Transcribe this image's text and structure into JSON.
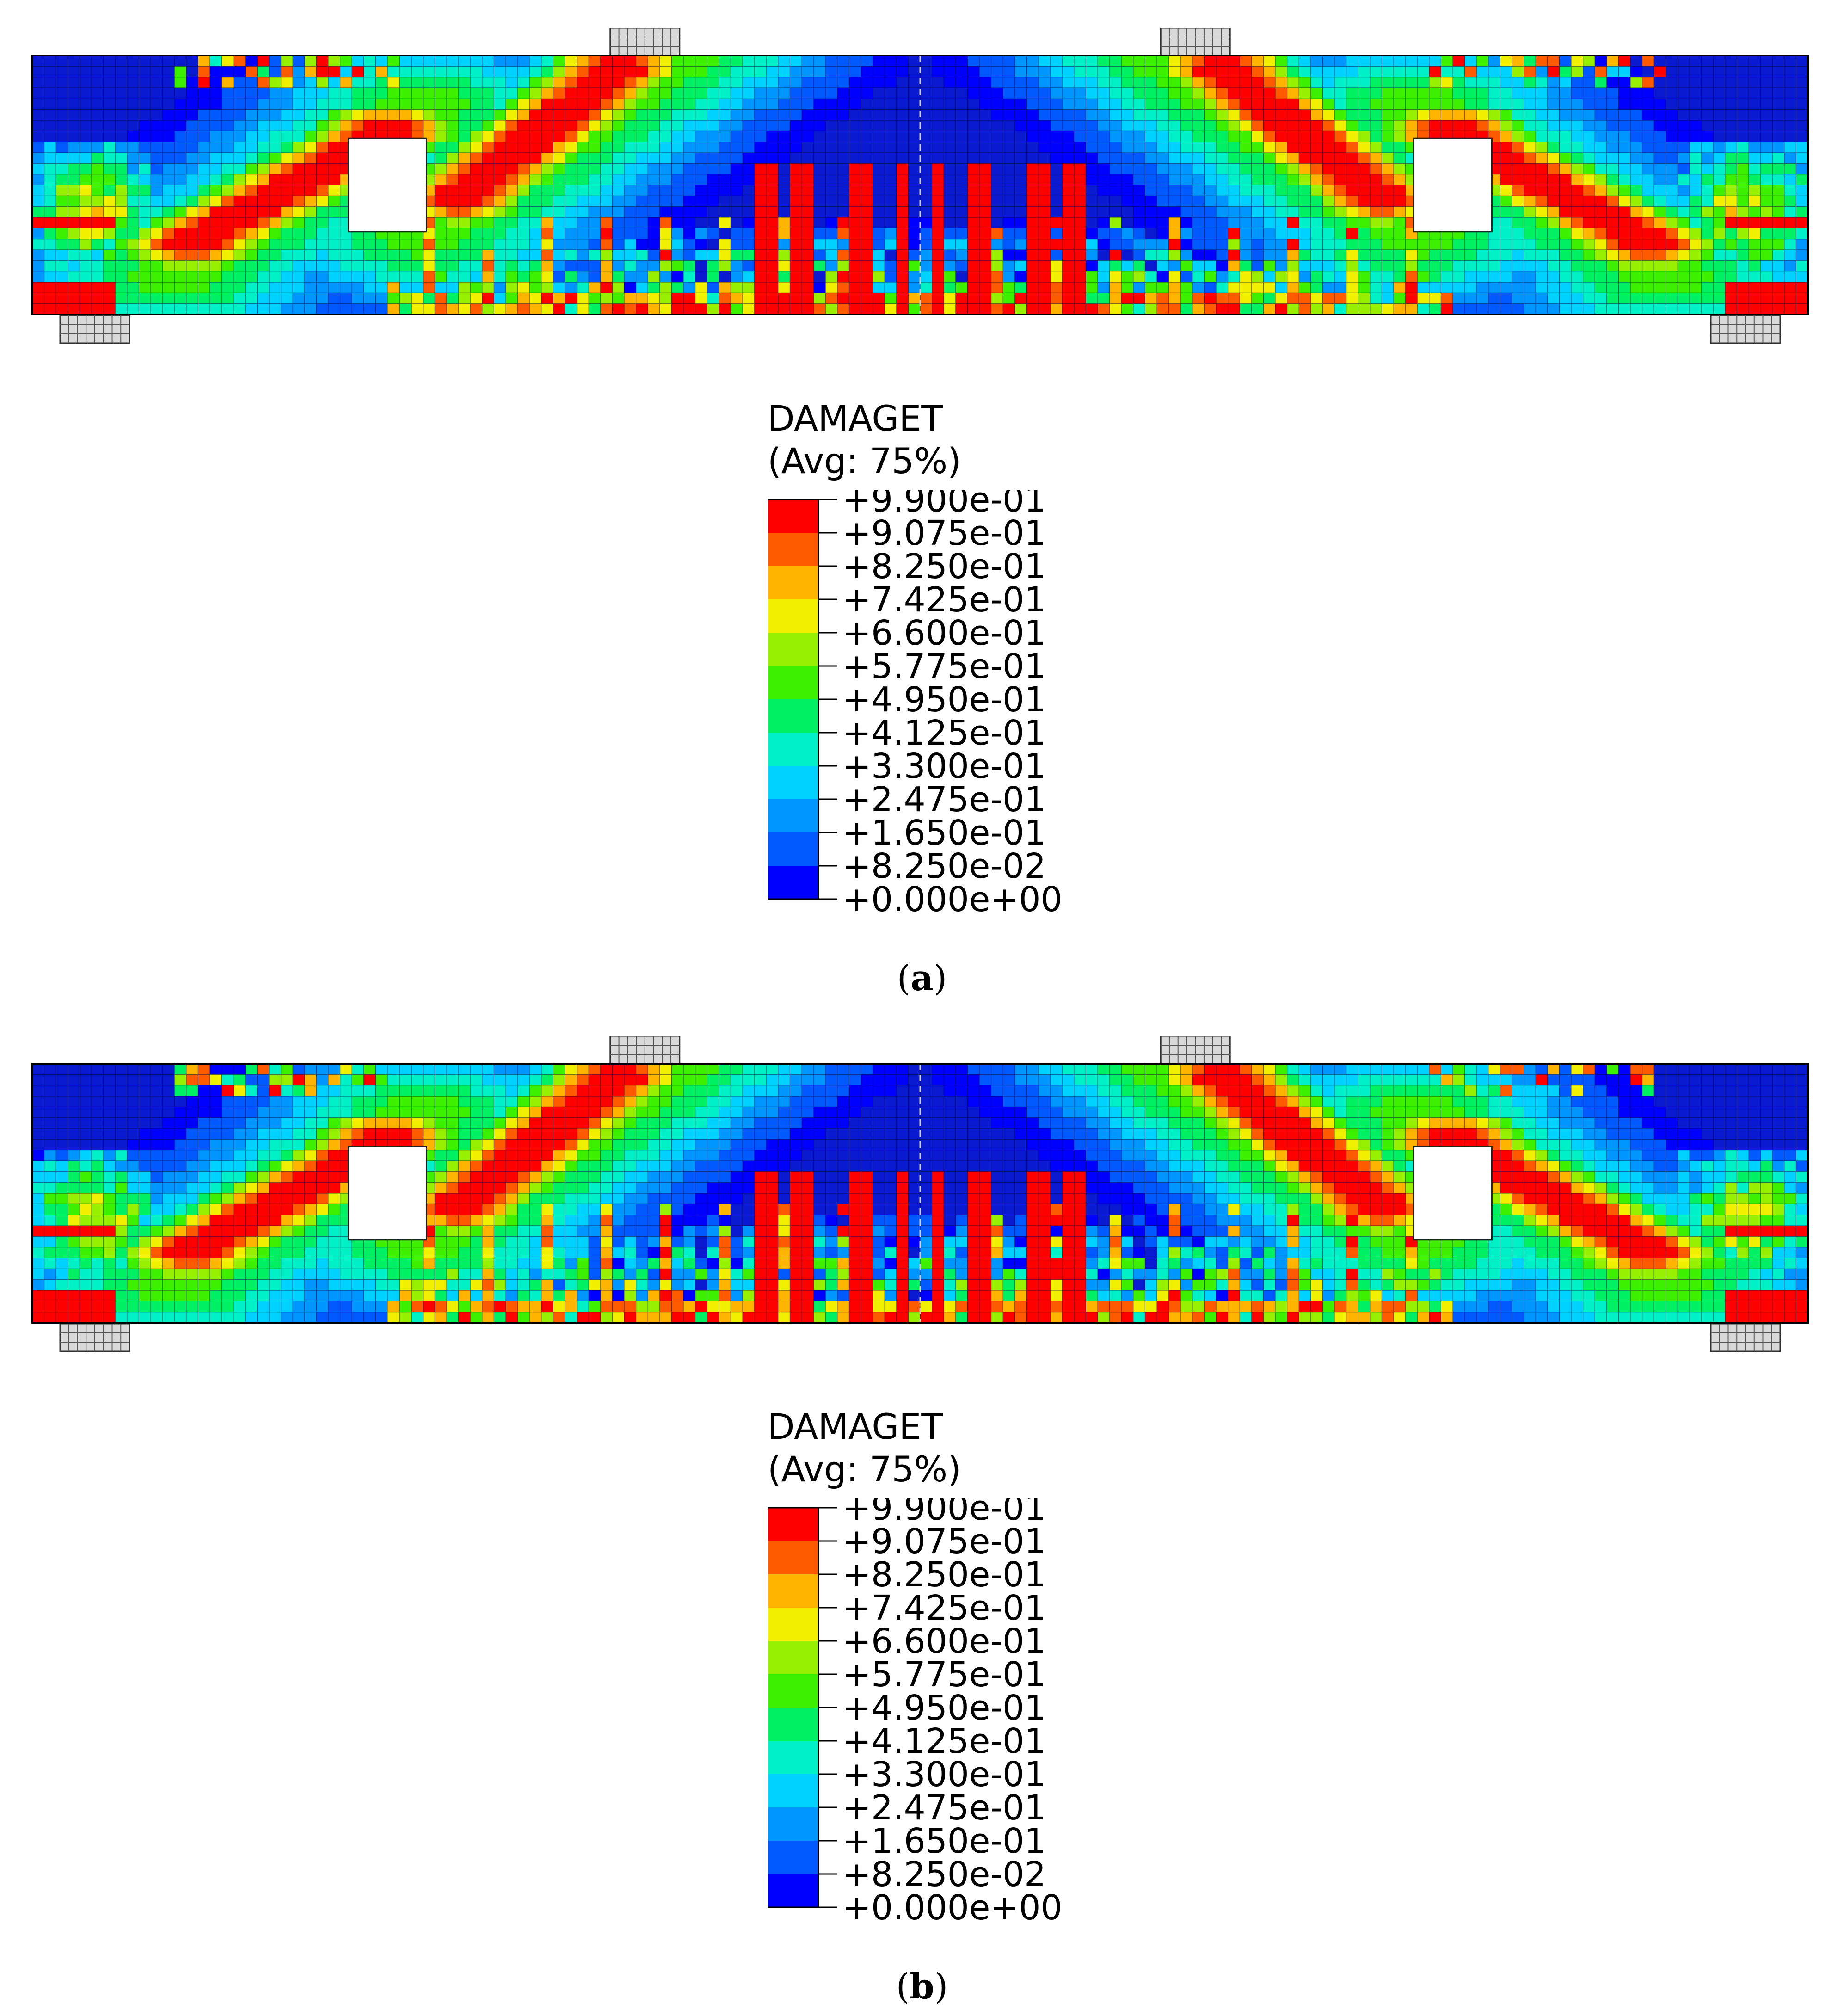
{
  "panels": [
    {
      "id": "a",
      "label": "a",
      "legend": {
        "title": "DAMAGET",
        "subtitle": "(Avg: 75%)",
        "ticks": [
          "+9.900e-01",
          "+9.075e-01",
          "+8.250e-01",
          "+7.425e-01",
          "+6.600e-01",
          "+5.775e-01",
          "+4.950e-01",
          "+4.125e-01",
          "+3.300e-01",
          "+2.475e-01",
          "+1.650e-01",
          "+8.250e-02",
          "+0.000e+00"
        ]
      }
    },
    {
      "id": "b",
      "label": "b",
      "legend": {
        "title": "DAMAGET",
        "subtitle": "(Avg: 75%)",
        "ticks": [
          "+9.900e-01",
          "+9.075e-01",
          "+8.250e-01",
          "+7.425e-01",
          "+6.600e-01",
          "+5.775e-01",
          "+4.950e-01",
          "+4.125e-01",
          "+3.300e-01",
          "+2.475e-01",
          "+1.650e-01",
          "+8.250e-02",
          "+0.000e+00"
        ]
      }
    }
  ],
  "colors": {
    "scale_high_to_low": [
      "#ff0000",
      "#ff5a00",
      "#ffb400",
      "#f0f000",
      "#96f000",
      "#3cf000",
      "#00f064",
      "#00f0c8",
      "#00d2ff",
      "#0096ff",
      "#005aff",
      "#0000ff"
    ],
    "background_blue": "#0a1ad0",
    "mesh_line": "#05073a",
    "support_block": "#d9d9d9"
  }
}
